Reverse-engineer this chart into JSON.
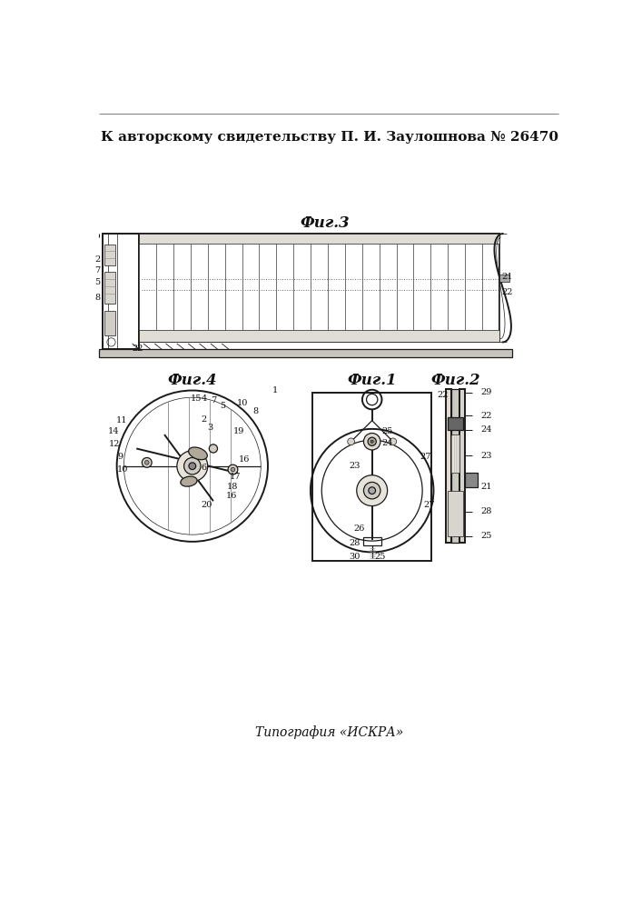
{
  "title": "К авторскому свидетельству П. И. Заулошнова № 26470",
  "footer": "Типография «ИСКРА»",
  "bg_color": "#ffffff",
  "line_color": "#1a1a1a",
  "fig3_label": "Фиг.3",
  "fig4_label": "Фиг.4",
  "fig1_label": "Фиг.1",
  "fig2_label": "Фиг.2"
}
